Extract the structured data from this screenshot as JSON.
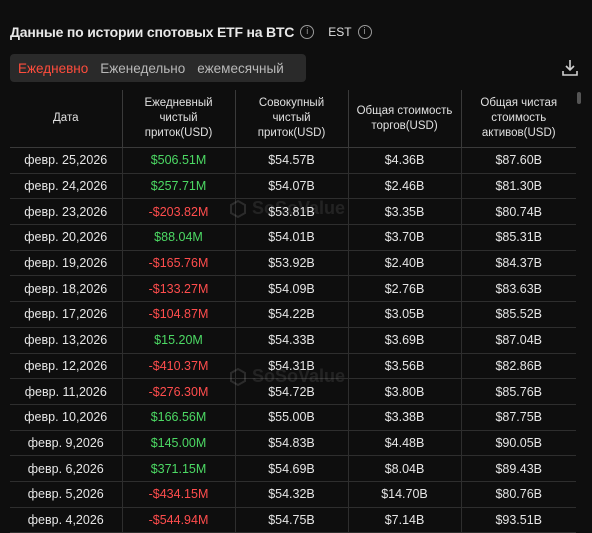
{
  "header": {
    "title": "Данные по истории спотовых ETF на BTC",
    "timezone": "EST"
  },
  "tabs": [
    {
      "label": "Ежедневно",
      "active": true
    },
    {
      "label": "Еженедельно",
      "active": false
    },
    {
      "label": "ежемесячный",
      "active": false
    }
  ],
  "table": {
    "columns": [
      "Дата",
      "Ежедневный чистый приток(USD)",
      "Совокупный чистый приток(USD)",
      "Общая стоимость торгов(USD)",
      "Общая чистая стоимость активов(USD)"
    ],
    "rows": [
      {
        "date": "февр. 25,2026",
        "daily": "$506.51M",
        "sign": "pos",
        "cumulative": "$54.57B",
        "volume": "$4.36B",
        "assets": "$87.60B"
      },
      {
        "date": "февр. 24,2026",
        "daily": "$257.71M",
        "sign": "pos",
        "cumulative": "$54.07B",
        "volume": "$2.46B",
        "assets": "$81.30B"
      },
      {
        "date": "февр. 23,2026",
        "daily": "-$203.82M",
        "sign": "neg",
        "cumulative": "$53.81B",
        "volume": "$3.35B",
        "assets": "$80.74B"
      },
      {
        "date": "февр. 20,2026",
        "daily": "$88.04M",
        "sign": "pos",
        "cumulative": "$54.01B",
        "volume": "$3.70B",
        "assets": "$85.31B"
      },
      {
        "date": "февр. 19,2026",
        "daily": "-$165.76M",
        "sign": "neg",
        "cumulative": "$53.92B",
        "volume": "$2.40B",
        "assets": "$84.37B"
      },
      {
        "date": "февр. 18,2026",
        "daily": "-$133.27M",
        "sign": "neg",
        "cumulative": "$54.09B",
        "volume": "$2.76B",
        "assets": "$83.63B"
      },
      {
        "date": "февр. 17,2026",
        "daily": "-$104.87M",
        "sign": "neg",
        "cumulative": "$54.22B",
        "volume": "$3.05B",
        "assets": "$85.52B"
      },
      {
        "date": "февр. 13,2026",
        "daily": "$15.20M",
        "sign": "pos",
        "cumulative": "$54.33B",
        "volume": "$3.69B",
        "assets": "$87.04B"
      },
      {
        "date": "февр. 12,2026",
        "daily": "-$410.37M",
        "sign": "neg",
        "cumulative": "$54.31B",
        "volume": "$3.56B",
        "assets": "$82.86B"
      },
      {
        "date": "февр. 11,2026",
        "daily": "-$276.30M",
        "sign": "neg",
        "cumulative": "$54.72B",
        "volume": "$3.80B",
        "assets": "$85.76B"
      },
      {
        "date": "февр. 10,2026",
        "daily": "$166.56M",
        "sign": "pos",
        "cumulative": "$55.00B",
        "volume": "$3.38B",
        "assets": "$87.75B"
      },
      {
        "date": "февр. 9,2026",
        "daily": "$145.00M",
        "sign": "pos",
        "cumulative": "$54.83B",
        "volume": "$4.48B",
        "assets": "$90.05B"
      },
      {
        "date": "февр. 6,2026",
        "daily": "$371.15M",
        "sign": "pos",
        "cumulative": "$54.69B",
        "volume": "$8.04B",
        "assets": "$89.43B"
      },
      {
        "date": "февр. 5,2026",
        "daily": "-$434.15M",
        "sign": "neg",
        "cumulative": "$54.32B",
        "volume": "$14.70B",
        "assets": "$80.76B"
      },
      {
        "date": "февр. 4,2026",
        "daily": "-$544.94M",
        "sign": "neg",
        "cumulative": "$54.75B",
        "volume": "$7.14B",
        "assets": "$93.51B"
      }
    ]
  },
  "watermark": "SoSoValue",
  "colors": {
    "positive": "#4cd964",
    "negative": "#ff4d4d",
    "accent": "#ff4d3d"
  }
}
